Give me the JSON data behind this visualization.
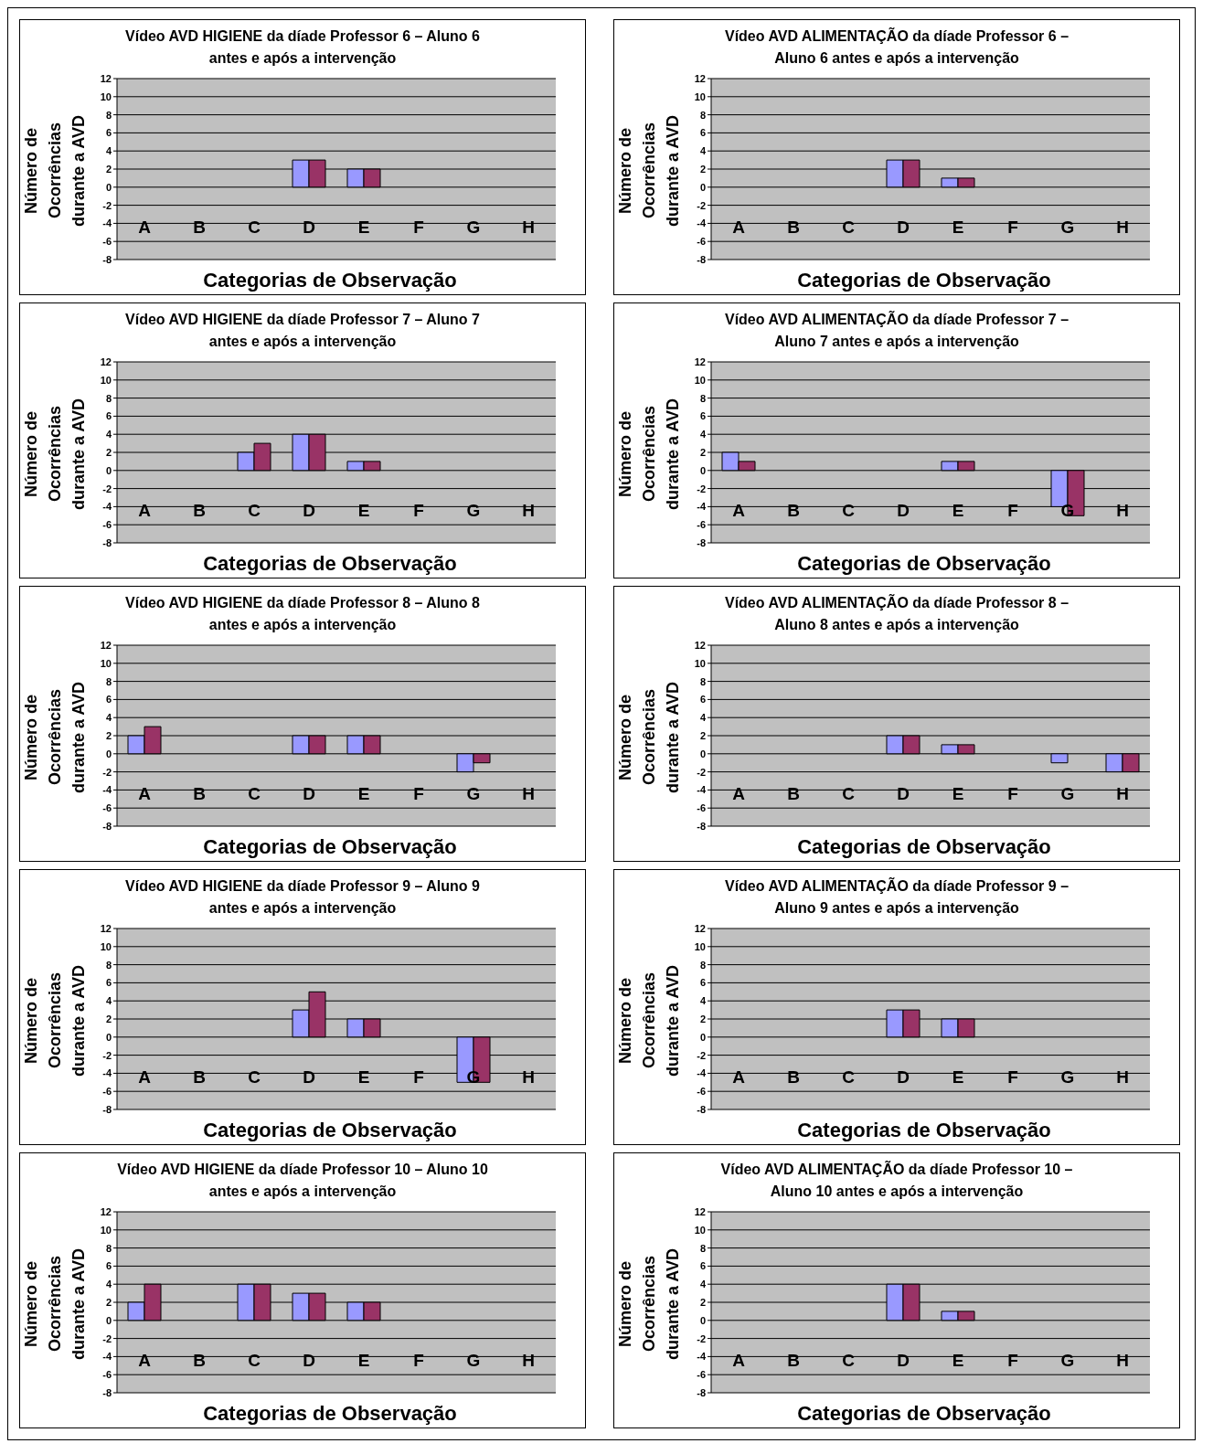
{
  "chart_data": [
    {
      "type": "bar",
      "title": "Vídeo AVD HIGIENE da díade Professor 6 – Aluno 6 antes e após a intervenção",
      "xlabel": "Categorias de Observação",
      "ylabel": "Número de Ocorrências durante a AVD",
      "categories": [
        "A",
        "B",
        "C",
        "D",
        "E",
        "F",
        "G",
        "H"
      ],
      "series": [
        {
          "color": "#9999ff",
          "values": [
            0,
            0,
            0,
            3,
            2,
            0,
            0,
            0
          ]
        },
        {
          "color": "#993366",
          "values": [
            0,
            0,
            0,
            3,
            2,
            0,
            0,
            0
          ]
        }
      ],
      "ylim": [
        -8,
        12
      ],
      "yticks": [
        -8,
        -6,
        -4,
        -2,
        0,
        2,
        4,
        6,
        8,
        10,
        12
      ],
      "grid": "y",
      "legend": false
    },
    {
      "type": "bar",
      "title": "Vídeo AVD ALIMENTAÇÃO da díade Professor 6 – Aluno 6 antes e após a intervenção",
      "xlabel": "Categorias de Observação",
      "ylabel": "Número de Ocorrências durante a AVD",
      "categories": [
        "A",
        "B",
        "C",
        "D",
        "E",
        "F",
        "G",
        "H"
      ],
      "series": [
        {
          "color": "#9999ff",
          "values": [
            0,
            0,
            0,
            3,
            1,
            0,
            0,
            0
          ]
        },
        {
          "color": "#993366",
          "values": [
            0,
            0,
            0,
            3,
            1,
            0,
            0,
            0
          ]
        }
      ],
      "ylim": [
        -8,
        12
      ],
      "yticks": [
        -8,
        -6,
        -4,
        -2,
        0,
        2,
        4,
        6,
        8,
        10,
        12
      ],
      "grid": "y",
      "legend": false
    },
    {
      "type": "bar",
      "title": "Vídeo AVD HIGIENE da díade Professor 7 – Aluno 7 antes e após a intervenção",
      "xlabel": "Categorias de Observação",
      "ylabel": "Número de Ocorrências durante a AVD",
      "categories": [
        "A",
        "B",
        "C",
        "D",
        "E",
        "F",
        "G",
        "H"
      ],
      "series": [
        {
          "color": "#9999ff",
          "values": [
            0,
            0,
            2,
            4,
            1,
            0,
            0,
            0
          ]
        },
        {
          "color": "#993366",
          "values": [
            0,
            0,
            3,
            4,
            1,
            0,
            0,
            0
          ]
        }
      ],
      "ylim": [
        -8,
        12
      ],
      "yticks": [
        -8,
        -6,
        -4,
        -2,
        0,
        2,
        4,
        6,
        8,
        10,
        12
      ],
      "grid": "y",
      "legend": false
    },
    {
      "type": "bar",
      "title": "Vídeo AVD ALIMENTAÇÃO da díade Professor 7 – Aluno 7 antes e após a intervenção",
      "xlabel": "Categorias de Observação",
      "ylabel": "Número de Ocorrências durante a AVD",
      "categories": [
        "A",
        "B",
        "C",
        "D",
        "E",
        "F",
        "G",
        "H"
      ],
      "series": [
        {
          "color": "#9999ff",
          "values": [
            2,
            0,
            0,
            0,
            1,
            0,
            -4,
            0
          ]
        },
        {
          "color": "#993366",
          "values": [
            1,
            0,
            0,
            0,
            1,
            0,
            -5,
            0
          ]
        }
      ],
      "ylim": [
        -8,
        12
      ],
      "yticks": [
        -8,
        -6,
        -4,
        -2,
        0,
        2,
        4,
        6,
        8,
        10,
        12
      ],
      "grid": "y",
      "legend": false
    },
    {
      "type": "bar",
      "title": "Vídeo AVD HIGIENE da díade Professor 8 – Aluno 8 antes e após a intervenção",
      "xlabel": "Categorias de Observação",
      "ylabel": "Número de Ocorrências durante a AVD",
      "categories": [
        "A",
        "B",
        "C",
        "D",
        "E",
        "F",
        "G",
        "H"
      ],
      "series": [
        {
          "color": "#9999ff",
          "values": [
            2,
            0,
            0,
            2,
            2,
            0,
            -2,
            0
          ]
        },
        {
          "color": "#993366",
          "values": [
            3,
            0,
            0,
            2,
            2,
            0,
            -1,
            0
          ]
        }
      ],
      "ylim": [
        -8,
        12
      ],
      "yticks": [
        -8,
        -6,
        -4,
        -2,
        0,
        2,
        4,
        6,
        8,
        10,
        12
      ],
      "grid": "y",
      "legend": false
    },
    {
      "type": "bar",
      "title": "Vídeo AVD ALIMENTAÇÃO da díade Professor 8 – Aluno 8 antes e após a intervenção",
      "xlabel": "Categorias de Observação",
      "ylabel": "Número de Ocorrências durante a AVD",
      "categories": [
        "A",
        "B",
        "C",
        "D",
        "E",
        "F",
        "G",
        "H"
      ],
      "series": [
        {
          "color": "#9999ff",
          "values": [
            0,
            0,
            0,
            2,
            1,
            0,
            -1,
            -2
          ]
        },
        {
          "color": "#993366",
          "values": [
            0,
            0,
            0,
            2,
            1,
            0,
            0,
            -2
          ]
        }
      ],
      "ylim": [
        -8,
        12
      ],
      "yticks": [
        -8,
        -6,
        -4,
        -2,
        0,
        2,
        4,
        6,
        8,
        10,
        12
      ],
      "grid": "y",
      "legend": false
    },
    {
      "type": "bar",
      "title": "Vídeo AVD HIGIENE da díade Professor 9 – Aluno 9 antes e após a intervenção",
      "xlabel": "Categorias de Observação",
      "ylabel": "Número de Ocorrências durante a AVD",
      "categories": [
        "A",
        "B",
        "C",
        "D",
        "E",
        "F",
        "G",
        "H"
      ],
      "series": [
        {
          "color": "#9999ff",
          "values": [
            0,
            0,
            0,
            3,
            2,
            0,
            -5,
            0
          ]
        },
        {
          "color": "#993366",
          "values": [
            0,
            0,
            0,
            5,
            2,
            0,
            -5,
            0
          ]
        }
      ],
      "ylim": [
        -8,
        12
      ],
      "yticks": [
        -8,
        -6,
        -4,
        -2,
        0,
        2,
        4,
        6,
        8,
        10,
        12
      ],
      "grid": "y",
      "legend": false
    },
    {
      "type": "bar",
      "title": "Vídeo AVD ALIMENTAÇÃO da díade Professor 9 – Aluno 9 antes e após a intervenção",
      "xlabel": "Categorias de Observação",
      "ylabel": "Número de Ocorrências durante a AVD",
      "categories": [
        "A",
        "B",
        "C",
        "D",
        "E",
        "F",
        "G",
        "H"
      ],
      "series": [
        {
          "color": "#9999ff",
          "values": [
            0,
            0,
            0,
            3,
            2,
            0,
            0,
            0
          ]
        },
        {
          "color": "#993366",
          "values": [
            0,
            0,
            0,
            3,
            2,
            0,
            0,
            0
          ]
        }
      ],
      "ylim": [
        -8,
        12
      ],
      "yticks": [
        -8,
        -6,
        -4,
        -2,
        0,
        2,
        4,
        6,
        8,
        10,
        12
      ],
      "grid": "y",
      "legend": false
    },
    {
      "type": "bar",
      "title": "Vídeo AVD HIGIENE da díade Professor 10 – Aluno 10 antes e após a intervenção",
      "xlabel": "Categorias de Observação",
      "ylabel": "Número de Ocorrências durante a AVD",
      "categories": [
        "A",
        "B",
        "C",
        "D",
        "E",
        "F",
        "G",
        "H"
      ],
      "series": [
        {
          "color": "#9999ff",
          "values": [
            2,
            0,
            4,
            3,
            2,
            0,
            0,
            0
          ]
        },
        {
          "color": "#993366",
          "values": [
            4,
            0,
            4,
            3,
            2,
            0,
            0,
            0
          ]
        }
      ],
      "ylim": [
        -8,
        12
      ],
      "yticks": [
        -8,
        -6,
        -4,
        -2,
        0,
        2,
        4,
        6,
        8,
        10,
        12
      ],
      "grid": "y",
      "legend": false
    },
    {
      "type": "bar",
      "title": "Vídeo AVD ALIMENTAÇÃO da díade Professor 10 – Aluno 10 antes e após a intervenção",
      "xlabel": "Categorias de Observação",
      "ylabel": "Número de Ocorrências durante a AVD",
      "categories": [
        "A",
        "B",
        "C",
        "D",
        "E",
        "F",
        "G",
        "H"
      ],
      "series": [
        {
          "color": "#9999ff",
          "values": [
            0,
            0,
            0,
            4,
            1,
            0,
            0,
            0
          ]
        },
        {
          "color": "#993366",
          "values": [
            0,
            0,
            0,
            4,
            1,
            0,
            0,
            0
          ]
        }
      ],
      "ylim": [
        -8,
        12
      ],
      "yticks": [
        -8,
        -6,
        -4,
        -2,
        0,
        2,
        4,
        6,
        8,
        10,
        12
      ],
      "grid": "y",
      "legend": false
    }
  ]
}
